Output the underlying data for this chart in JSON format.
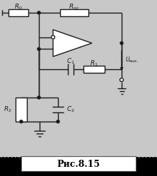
{
  "bg_color": "#c8c8c8",
  "circuit_bg": "#d8d8d8",
  "title": "Рис.8.15",
  "title_fontsize": 9,
  "line_color": "#1a1a1a",
  "lw": 1.0,
  "caption_bg": "#ffffff",
  "caption_border": "#555555"
}
